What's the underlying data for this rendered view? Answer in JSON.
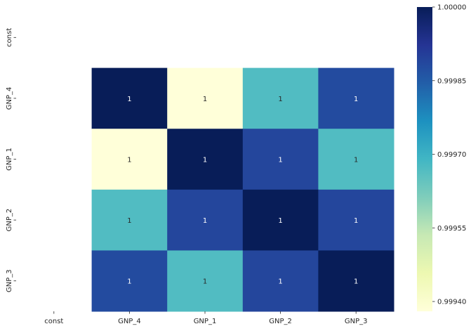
{
  "chart_data": {
    "type": "heatmap",
    "title": "",
    "xlabel": "",
    "ylabel": "",
    "x_categories": [
      "const",
      "GNP_4",
      "GNP_1",
      "GNP_2",
      "GNP_3"
    ],
    "y_categories": [
      "const",
      "GNP_4",
      "GNP_1",
      "GNP_2",
      "GNP_3"
    ],
    "values": [
      [
        null,
        null,
        null,
        null,
        null
      ],
      [
        null,
        1.0,
        0.99938,
        0.99967,
        0.99988
      ],
      [
        null,
        0.99938,
        1.0,
        0.99989,
        0.99967
      ],
      [
        null,
        0.99967,
        0.99989,
        1.0,
        0.99989
      ],
      [
        null,
        0.99988,
        0.99967,
        0.99989,
        1.0
      ]
    ],
    "annotations": [
      [
        "",
        "",
        "",
        "",
        ""
      ],
      [
        "",
        "1",
        "1",
        "1",
        "1"
      ],
      [
        "",
        "1",
        "1",
        "1",
        "1"
      ],
      [
        "",
        "1",
        "1",
        "1",
        "1"
      ],
      [
        "",
        "1",
        "1",
        "1",
        "1"
      ]
    ],
    "colormap": "YlGnBu",
    "colorbar": {
      "vmin": 0.99938,
      "vmax": 1.0,
      "ticks": [
        0.9994,
        0.99955,
        0.9997,
        0.99985,
        1.0
      ],
      "tick_labels": [
        "0.99940",
        "0.99955",
        "0.99970",
        "0.99985",
        "1.00000"
      ]
    },
    "grid": false,
    "legend": "colorbar-right"
  }
}
